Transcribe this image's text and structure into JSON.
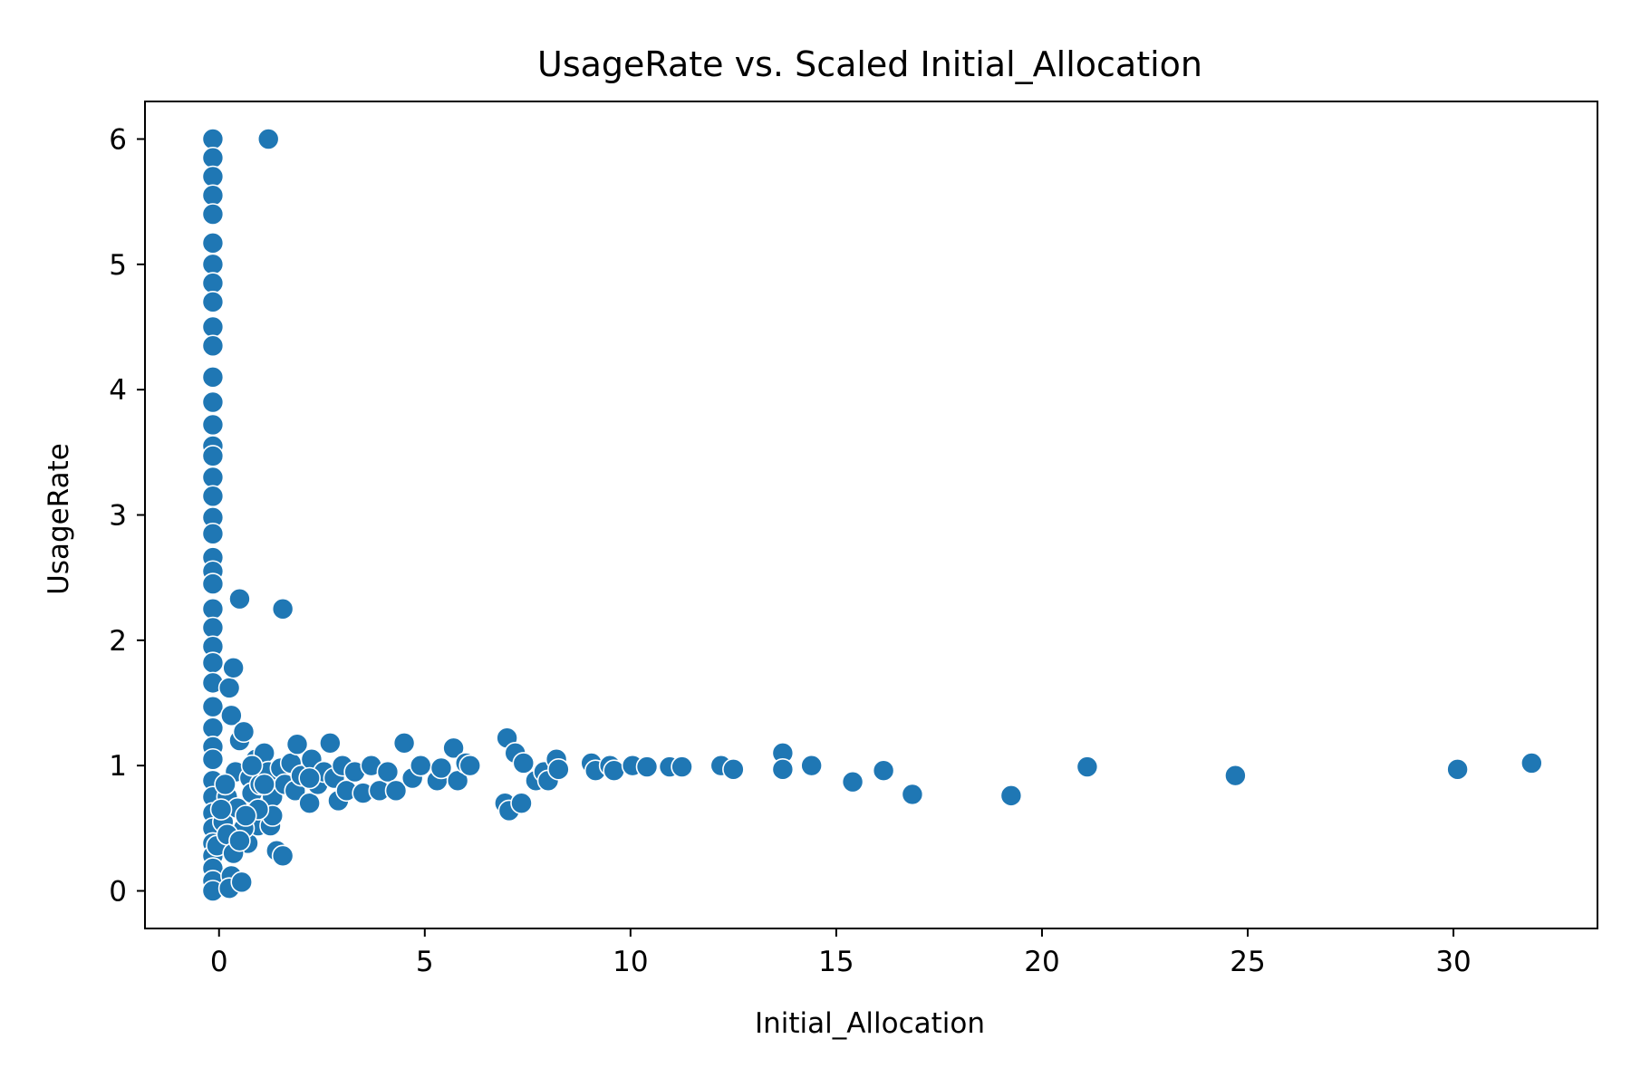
{
  "chart_data": {
    "type": "scatter",
    "title": "UsageRate vs. Scaled Initial_Allocation",
    "xlabel": "Initial_Allocation",
    "ylabel": "UsageRate",
    "xlim": [
      -1.8,
      33.5
    ],
    "ylim": [
      -0.3,
      6.3
    ],
    "xticks": [
      0,
      5,
      10,
      15,
      20,
      25,
      30
    ],
    "yticks": [
      0,
      1,
      2,
      3,
      4,
      5,
      6
    ],
    "grid": false,
    "legend": "none",
    "marker_color": "#1f77b4",
    "marker_edge_color": "#ffffff",
    "series": [
      {
        "points": [
          [
            -0.15,
            6.0
          ],
          [
            -0.15,
            5.85
          ],
          [
            -0.15,
            5.7
          ],
          [
            -0.15,
            5.55
          ],
          [
            -0.15,
            5.4
          ],
          [
            -0.15,
            5.17
          ],
          [
            -0.15,
            5.0
          ],
          [
            -0.15,
            4.85
          ],
          [
            -0.15,
            4.7
          ],
          [
            -0.15,
            4.5
          ],
          [
            -0.15,
            4.35
          ],
          [
            -0.15,
            4.1
          ],
          [
            -0.15,
            3.9
          ],
          [
            -0.15,
            3.72
          ],
          [
            -0.15,
            3.55
          ],
          [
            -0.15,
            3.47
          ],
          [
            -0.15,
            3.3
          ],
          [
            -0.15,
            3.15
          ],
          [
            -0.15,
            2.98
          ],
          [
            -0.15,
            2.85
          ],
          [
            -0.15,
            2.66
          ],
          [
            -0.15,
            2.55
          ],
          [
            -0.15,
            2.45
          ],
          [
            -0.15,
            2.25
          ],
          [
            -0.15,
            2.1
          ],
          [
            -0.15,
            1.95
          ],
          [
            -0.15,
            1.82
          ],
          [
            -0.15,
            1.66
          ],
          [
            -0.15,
            1.47
          ],
          [
            -0.15,
            1.3
          ],
          [
            -0.15,
            1.15
          ],
          [
            -0.15,
            1.05
          ],
          [
            -0.15,
            0.88
          ],
          [
            -0.15,
            0.75
          ],
          [
            -0.15,
            0.62
          ],
          [
            -0.15,
            0.5
          ],
          [
            -0.15,
            0.38
          ],
          [
            -0.15,
            0.28
          ],
          [
            -0.15,
            0.18
          ],
          [
            -0.15,
            0.08
          ],
          [
            -0.15,
            0.0
          ],
          [
            -0.05,
            0.36
          ],
          [
            0.1,
            0.55
          ],
          [
            0.2,
            0.75
          ],
          [
            0.25,
            1.62
          ],
          [
            0.3,
            1.4
          ],
          [
            0.35,
            1.78
          ],
          [
            0.3,
            0.12
          ],
          [
            0.25,
            0.02
          ],
          [
            0.55,
            0.07
          ],
          [
            0.4,
            0.95
          ],
          [
            0.45,
            0.66
          ],
          [
            0.5,
            1.2
          ],
          [
            0.6,
            1.27
          ],
          [
            0.7,
            0.38
          ],
          [
            0.75,
            0.9
          ],
          [
            0.8,
            0.78
          ],
          [
            0.9,
            1.05
          ],
          [
            0.95,
            0.52
          ],
          [
            1.0,
            0.85
          ],
          [
            1.1,
            1.1
          ],
          [
            1.2,
            0.95
          ],
          [
            1.25,
            0.52
          ],
          [
            1.3,
            0.75
          ],
          [
            1.4,
            0.32
          ],
          [
            1.5,
            0.98
          ],
          [
            1.55,
            0.28
          ],
          [
            1.6,
            0.85
          ],
          [
            1.75,
            1.02
          ],
          [
            1.85,
            0.8
          ],
          [
            1.9,
            1.17
          ],
          [
            2.0,
            0.92
          ],
          [
            2.2,
            0.7
          ],
          [
            2.25,
            1.05
          ],
          [
            2.4,
            0.85
          ],
          [
            2.55,
            0.95
          ],
          [
            2.7,
            1.18
          ],
          [
            2.8,
            0.9
          ],
          [
            2.9,
            0.72
          ],
          [
            3.0,
            1.0
          ],
          [
            3.1,
            0.8
          ],
          [
            3.3,
            0.95
          ],
          [
            3.5,
            0.78
          ],
          [
            3.7,
            1.0
          ],
          [
            3.9,
            0.8
          ],
          [
            4.1,
            0.95
          ],
          [
            4.3,
            0.8
          ],
          [
            4.5,
            1.18
          ],
          [
            4.7,
            0.9
          ],
          [
            4.9,
            1.0
          ],
          [
            5.3,
            0.88
          ],
          [
            5.4,
            0.98
          ],
          [
            5.7,
            1.14
          ],
          [
            5.8,
            0.88
          ],
          [
            6.0,
            1.02
          ],
          [
            6.1,
            1.0
          ],
          [
            6.95,
            0.7
          ],
          [
            7.0,
            1.22
          ],
          [
            7.05,
            0.64
          ],
          [
            7.2,
            1.1
          ],
          [
            7.35,
            0.7
          ],
          [
            7.4,
            1.02
          ],
          [
            7.7,
            0.88
          ],
          [
            7.9,
            0.95
          ],
          [
            8.0,
            0.88
          ],
          [
            8.2,
            1.05
          ],
          [
            8.25,
            0.97
          ],
          [
            9.05,
            1.02
          ],
          [
            9.15,
            0.96
          ],
          [
            9.5,
            1.0
          ],
          [
            9.6,
            0.96
          ],
          [
            10.05,
            1.0
          ],
          [
            10.4,
            0.99
          ],
          [
            10.95,
            0.99
          ],
          [
            11.25,
            0.99
          ],
          [
            12.2,
            1.0
          ],
          [
            12.5,
            0.97
          ],
          [
            13.7,
            1.1
          ],
          [
            13.7,
            0.97
          ],
          [
            14.4,
            1.0
          ],
          [
            15.4,
            0.87
          ],
          [
            16.15,
            0.96
          ],
          [
            16.85,
            0.77
          ],
          [
            19.25,
            0.76
          ],
          [
            21.1,
            0.99
          ],
          [
            24.7,
            0.92
          ],
          [
            30.1,
            0.97
          ],
          [
            31.9,
            1.02
          ],
          [
            1.2,
            6.0
          ],
          [
            0.5,
            2.33
          ],
          [
            1.55,
            2.25
          ],
          [
            1.3,
            0.6
          ],
          [
            0.95,
            0.65
          ],
          [
            0.6,
            0.5
          ],
          [
            0.8,
            1.0
          ],
          [
            1.1,
            0.85
          ],
          [
            2.2,
            0.9
          ],
          [
            0.15,
            0.85
          ],
          [
            0.2,
            0.45
          ],
          [
            0.05,
            0.65
          ],
          [
            0.35,
            0.3
          ],
          [
            0.5,
            0.4
          ],
          [
            0.65,
            0.6
          ]
        ]
      }
    ]
  }
}
